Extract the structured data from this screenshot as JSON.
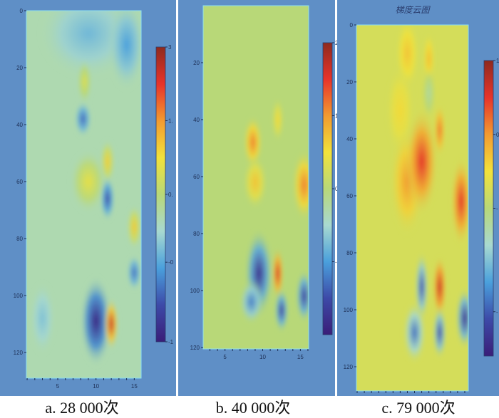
{
  "chart_data": {
    "type": "heatmap",
    "colorscale": [
      "#3a1d78",
      "#3d4aa8",
      "#4aa0dc",
      "#a8d9d0",
      "#b8d878",
      "#f2e23a",
      "#f29a30",
      "#e8332a",
      "#8e2a1e"
    ],
    "panels": [
      {
        "caption": "a. 28 000次",
        "title": "",
        "yticks": [
          "0",
          "20",
          "40",
          "60",
          "80",
          "100",
          "120"
        ],
        "ytick_values": [
          0,
          20,
          40,
          60,
          80,
          100,
          120
        ],
        "xticks": [
          "5",
          "10",
          "15"
        ],
        "xtick_values": [
          5,
          10,
          15
        ],
        "xlim": [
          0.9,
          15.9
        ],
        "ylim": [
          0,
          129
        ],
        "colorbar_ticks": [
          "3",
          "1.",
          "0.",
          "-0",
          "-1"
        ],
        "colorbar_tick_levels": [
          1,
          0.75,
          0.5,
          0.27,
          0
        ],
        "background_level": 0.42,
        "features": [
          {
            "x": 9,
            "y": 8,
            "rx": 4,
            "ry": 10,
            "level": 0.3
          },
          {
            "x": 14,
            "y": 12,
            "rx": 1.5,
            "ry": 10,
            "level": 0.25
          },
          {
            "x": 8.5,
            "y": 25,
            "rx": 0.6,
            "ry": 5,
            "level": 0.58
          },
          {
            "x": 8.3,
            "y": 38,
            "rx": 0.7,
            "ry": 4,
            "level": 0.17
          },
          {
            "x": 11.5,
            "y": 53,
            "rx": 0.6,
            "ry": 5,
            "level": 0.66
          },
          {
            "x": 9,
            "y": 60,
            "rx": 1.5,
            "ry": 7,
            "level": 0.6
          },
          {
            "x": 11.5,
            "y": 66,
            "rx": 0.6,
            "ry": 5,
            "level": 0.12
          },
          {
            "x": 15,
            "y": 76,
            "rx": 0.6,
            "ry": 5,
            "level": 0.67
          },
          {
            "x": 15,
            "y": 92,
            "rx": 0.6,
            "ry": 4,
            "level": 0.18
          },
          {
            "x": 3,
            "y": 108,
            "rx": 1,
            "ry": 8,
            "level": 0.32
          },
          {
            "x": 10,
            "y": 109,
            "rx": 1.3,
            "ry": 10,
            "level": 0.02
          },
          {
            "x": 12,
            "y": 110,
            "rx": 0.6,
            "ry": 6,
            "level": 0.92
          }
        ]
      },
      {
        "caption": "b. 40 000次",
        "title": "",
        "yticks": [
          "20",
          "40",
          "60",
          "80",
          "100",
          "120"
        ],
        "ytick_values": [
          20,
          40,
          60,
          80,
          100,
          120
        ],
        "xticks": [
          "5",
          "10",
          "15"
        ],
        "xtick_values": [
          5,
          10,
          15
        ],
        "xlim": [
          2.1,
          16.1
        ],
        "ylim": [
          0,
          120.5
        ],
        "colorbar_ticks": [
          "2",
          "1",
          "0",
          "-1"
        ],
        "colorbar_tick_levels": [
          1,
          0.75,
          0.5,
          0.25
        ],
        "background_level": 0.5,
        "features": [
          {
            "x": 12,
            "y": 40,
            "rx": 0.5,
            "ry": 5,
            "level": 0.64
          },
          {
            "x": 8.7,
            "y": 48,
            "rx": 0.8,
            "ry": 6,
            "level": 0.78
          },
          {
            "x": 9,
            "y": 62,
            "rx": 1,
            "ry": 6,
            "level": 0.68
          },
          {
            "x": 15.5,
            "y": 63,
            "rx": 1,
            "ry": 8,
            "level": 0.78
          },
          {
            "x": 12,
            "y": 94,
            "rx": 0.5,
            "ry": 6,
            "level": 0.9
          },
          {
            "x": 9.5,
            "y": 94,
            "rx": 1.2,
            "ry": 10,
            "level": 0.05
          },
          {
            "x": 8.5,
            "y": 104,
            "rx": 1,
            "ry": 5,
            "level": 0.2
          },
          {
            "x": 12.5,
            "y": 107,
            "rx": 0.6,
            "ry": 5,
            "level": 0.08
          },
          {
            "x": 15.5,
            "y": 102,
            "rx": 0.7,
            "ry": 6,
            "level": 0.08
          }
        ]
      },
      {
        "caption": "c. 79 000次",
        "title": "梯度云图",
        "yticks": [
          "0",
          "20",
          "40",
          "60",
          "80",
          "100",
          "120"
        ],
        "ytick_values": [
          0,
          20,
          40,
          60,
          80,
          100,
          120
        ],
        "xticks": [],
        "xtick_values": [],
        "xlim": [
          0.9,
          16.5
        ],
        "ylim": [
          0,
          128.5
        ],
        "colorbar_ticks": [
          "1",
          "0",
          "-",
          "-"
        ],
        "colorbar_tick_levels": [
          1,
          0.75,
          0.5,
          0.15
        ],
        "background_level": 0.56,
        "features": [
          {
            "x": 8,
            "y": 10,
            "rx": 1,
            "ry": 8,
            "level": 0.68
          },
          {
            "x": 11,
            "y": 12,
            "rx": 0.5,
            "ry": 6,
            "level": 0.7
          },
          {
            "x": 11,
            "y": 24,
            "rx": 0.6,
            "ry": 6,
            "level": 0.44
          },
          {
            "x": 7,
            "y": 30,
            "rx": 1.2,
            "ry": 10,
            "level": 0.64
          },
          {
            "x": 12.5,
            "y": 37,
            "rx": 0.5,
            "ry": 6,
            "level": 0.8
          },
          {
            "x": 8,
            "y": 55,
            "rx": 1.5,
            "ry": 12,
            "level": 0.75
          },
          {
            "x": 10,
            "y": 48,
            "rx": 1.4,
            "ry": 12,
            "level": 0.88
          },
          {
            "x": 15.5,
            "y": 62,
            "rx": 0.9,
            "ry": 10,
            "level": 0.88
          },
          {
            "x": 12.5,
            "y": 92,
            "rx": 0.6,
            "ry": 7,
            "level": 0.92
          },
          {
            "x": 10,
            "y": 92,
            "rx": 0.6,
            "ry": 8,
            "level": 0.12
          },
          {
            "x": 9,
            "y": 108,
            "rx": 1,
            "ry": 7,
            "level": 0.18
          },
          {
            "x": 12.5,
            "y": 108,
            "rx": 0.6,
            "ry": 6,
            "level": 0.1
          },
          {
            "x": 16,
            "y": 103,
            "rx": 0.8,
            "ry": 7,
            "level": 0.05
          }
        ]
      }
    ]
  }
}
